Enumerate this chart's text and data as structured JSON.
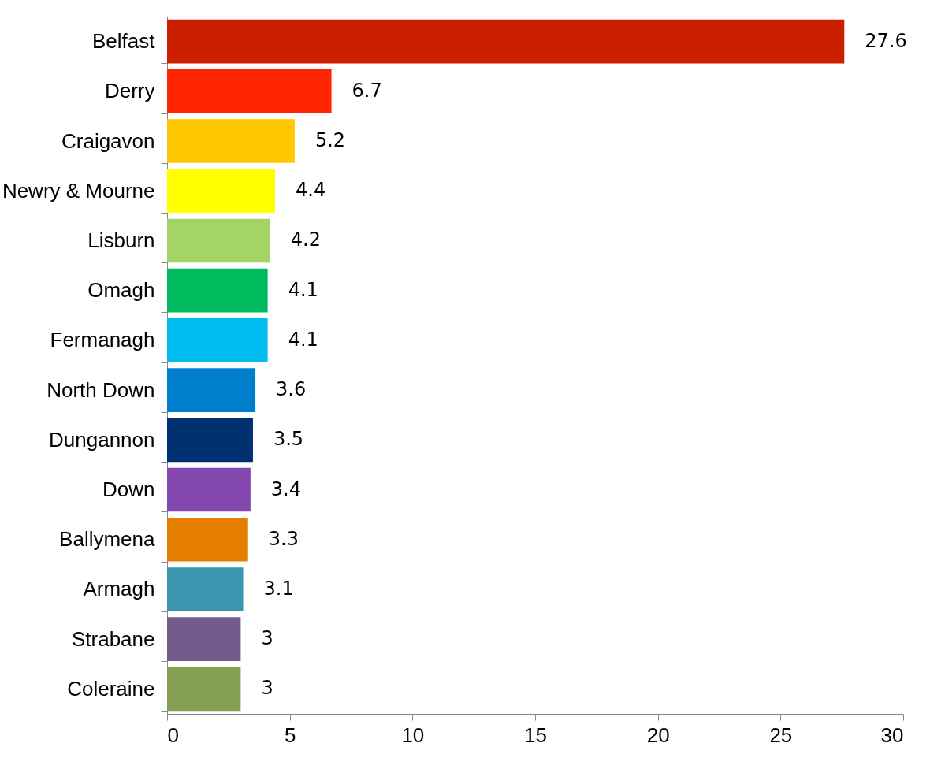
{
  "chart_data": {
    "type": "bar",
    "orientation": "horizontal",
    "categories": [
      "Belfast",
      "Derry",
      "Craigavon",
      "Newry & Mourne",
      "Lisburn",
      "Omagh",
      "Fermanagh",
      "North Down",
      "Dungannon",
      "Down",
      "Ballymena",
      "Armagh",
      "Strabane",
      "Coleraine"
    ],
    "values": [
      27.6,
      6.7,
      5.2,
      4.4,
      4.2,
      4.1,
      4.1,
      3.6,
      3.5,
      3.4,
      3.3,
      3.1,
      3,
      3
    ],
    "colors": [
      "#cc1f00",
      "#ff2500",
      "#ffc800",
      "#ffff00",
      "#a4d466",
      "#00bb5e",
      "#00bdf0",
      "#0080cc",
      "#003070",
      "#8447b0",
      "#e67e00",
      "#3a95ae",
      "#745b8c",
      "#84a050"
    ],
    "xlim": [
      0,
      30
    ],
    "xticks": [
      0,
      5,
      10,
      15,
      20,
      25,
      30
    ],
    "grid": false,
    "data_labels": true
  }
}
